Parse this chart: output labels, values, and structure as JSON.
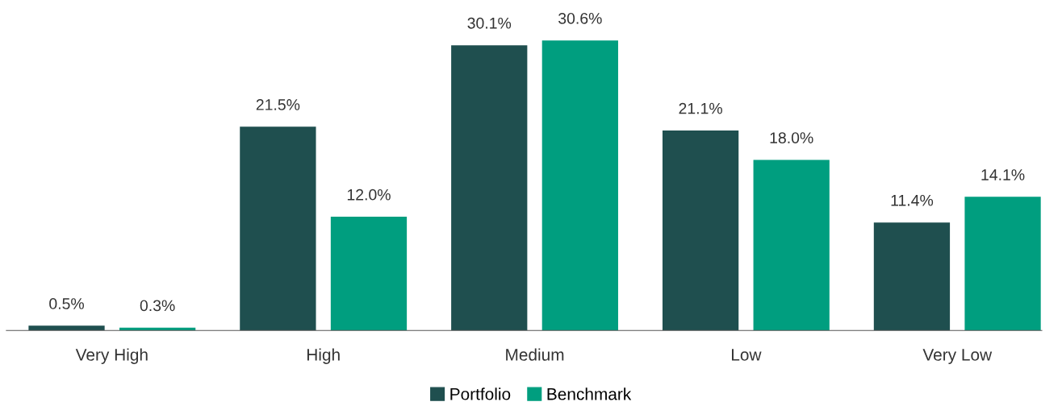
{
  "chart_data": {
    "type": "bar",
    "categories": [
      "Very High",
      "High",
      "Medium",
      "Low",
      "Very Low"
    ],
    "series": [
      {
        "name": "Portfolio",
        "color": "#1f4f4f",
        "values": [
          0.5,
          21.5,
          30.1,
          21.1,
          11.4
        ],
        "value_labels": [
          "0.5%",
          "21.5%",
          "30.1%",
          "21.1%",
          "11.4%"
        ]
      },
      {
        "name": "Benchmark",
        "color": "#009e7f",
        "values": [
          0.3,
          12.0,
          30.6,
          18.0,
          14.1
        ],
        "value_labels": [
          "0.3%",
          "12.0%",
          "30.6%",
          "18.0%",
          "14.1%"
        ]
      }
    ],
    "legend": "bottom",
    "grid": false
  }
}
